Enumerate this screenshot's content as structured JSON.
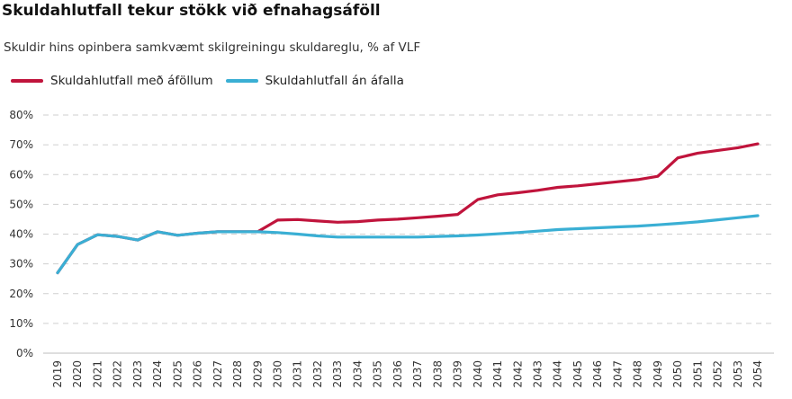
{
  "title": "Skuldahlutfall tekur stökk við efnahagsáföll",
  "subtitle": "Skuldir hins opinbera samkvæmt skilgreiningu skuldareglu, % af VLF",
  "chart_data": {
    "type": "line",
    "title": "Skuldahlutfall tekur stökk við efnahagsáföll",
    "subtitle": "Skuldir hins opinbera samkvæmt skilgreiningu skuldareglu, % af VLF",
    "xlabel": "",
    "ylabel": "",
    "ylim": [
      0,
      80
    ],
    "yticks": [
      0,
      10,
      20,
      30,
      40,
      50,
      60,
      70,
      80
    ],
    "ytick_labels": [
      "0%",
      "10%",
      "20%",
      "30%",
      "40%",
      "50%",
      "60%",
      "70%",
      "80%"
    ],
    "grid": "horizontal-dashed",
    "legend_position": "top-left",
    "x": [
      "2019",
      "2020",
      "2021",
      "2022",
      "2023",
      "2024",
      "2025",
      "2026",
      "2027",
      "2028",
      "2029",
      "2030",
      "2031",
      "2032",
      "2033",
      "2034",
      "2035",
      "2036",
      "2037",
      "2038",
      "2039",
      "2040",
      "2041",
      "2042",
      "2043",
      "2044",
      "2045",
      "2046",
      "2047",
      "2048",
      "2049",
      "2050",
      "2051",
      "2052",
      "2053",
      "2054"
    ],
    "series": [
      {
        "name": "Skuldahlutfall með áföllum",
        "color": "#c0143c",
        "values": [
          27.0,
          36.5,
          39.8,
          39.2,
          38.0,
          40.8,
          39.6,
          40.3,
          40.8,
          40.8,
          40.8,
          44.7,
          44.9,
          44.4,
          44.0,
          44.2,
          44.7,
          45.0,
          45.5,
          46.0,
          46.6,
          51.6,
          53.2,
          53.9,
          54.7,
          55.7,
          56.2,
          56.9,
          57.6,
          58.3,
          59.4,
          65.6,
          67.2,
          68.1,
          69.0,
          70.3
        ]
      },
      {
        "name": "Skuldahlutfall án áfalla",
        "color": "#3aafd4",
        "values": [
          27.0,
          36.5,
          39.8,
          39.2,
          38.0,
          40.8,
          39.6,
          40.3,
          40.8,
          40.8,
          40.8,
          40.5,
          40.0,
          39.4,
          39.0,
          39.0,
          39.0,
          39.0,
          39.0,
          39.2,
          39.4,
          39.7,
          40.1,
          40.5,
          41.0,
          41.5,
          41.8,
          42.1,
          42.4,
          42.7,
          43.1,
          43.6,
          44.1,
          44.8,
          45.5,
          46.2
        ]
      }
    ]
  }
}
